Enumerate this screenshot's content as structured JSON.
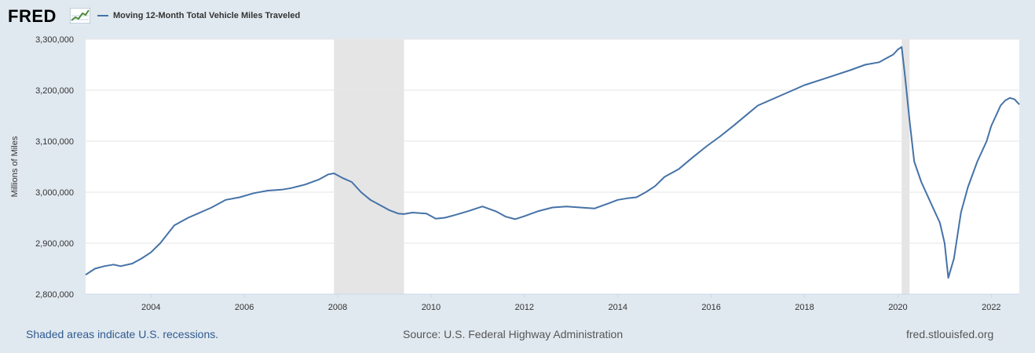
{
  "brand": {
    "logo_text": "FRED",
    "logo_icon": "line-chart-icon"
  },
  "legend": {
    "label": "Moving 12-Month Total Vehicle Miles Traveled"
  },
  "colors": {
    "series": "#4572a7",
    "recession": "#e5e5e5",
    "plot_bg": "#ffffff",
    "page_bg": "#e1e9f0",
    "grid": "#e6e6e6",
    "axis_text": "#333333"
  },
  "footer": {
    "recession_note": "Shaded areas indicate U.S. recessions.",
    "source": "Source: U.S. Federal Highway Administration",
    "site": "fred.stlouisfed.org"
  },
  "chart_data": {
    "type": "line",
    "title": "",
    "xlabel": "",
    "ylabel": "Millions of Miles",
    "xlim": [
      2002.6,
      2022.6
    ],
    "ylim": [
      2800000,
      3300000
    ],
    "grid": true,
    "legend_position": "top-left",
    "x_ticks": [
      "2004",
      "2006",
      "2008",
      "2010",
      "2012",
      "2014",
      "2016",
      "2018",
      "2020",
      "2022"
    ],
    "y_ticks": [
      "2,800,000",
      "2,900,000",
      "3,000,000",
      "3,100,000",
      "3,200,000",
      "3,300,000"
    ],
    "recessions": [
      {
        "start": 2007.92,
        "end": 2009.42
      },
      {
        "start": 2020.08,
        "end": 2020.25
      }
    ],
    "series": [
      {
        "name": "Moving 12-Month Total Vehicle Miles Traveled",
        "x": [
          2002.6,
          2002.8,
          2003.0,
          2003.2,
          2003.35,
          2003.6,
          2003.8,
          2004.0,
          2004.2,
          2004.5,
          2004.8,
          2005.0,
          2005.3,
          2005.6,
          2005.9,
          2006.2,
          2006.5,
          2006.8,
          2007.0,
          2007.3,
          2007.6,
          2007.8,
          2007.92,
          2008.1,
          2008.3,
          2008.5,
          2008.7,
          2008.9,
          2009.1,
          2009.3,
          2009.42,
          2009.6,
          2009.9,
          2010.1,
          2010.3,
          2010.5,
          2010.8,
          2011.1,
          2011.4,
          2011.6,
          2011.8,
          2012.0,
          2012.3,
          2012.6,
          2012.9,
          2013.2,
          2013.5,
          2013.8,
          2014.0,
          2014.2,
          2014.4,
          2014.6,
          2014.8,
          2015.0,
          2015.3,
          2015.6,
          2015.9,
          2016.2,
          2016.5,
          2016.8,
          2017.0,
          2017.5,
          2018.0,
          2018.5,
          2019.0,
          2019.3,
          2019.6,
          2019.8,
          2019.9,
          2020.0,
          2020.08,
          2020.15,
          2020.25,
          2020.35,
          2020.5,
          2020.7,
          2020.9,
          2021.0,
          2021.08,
          2021.2,
          2021.35,
          2021.5,
          2021.7,
          2021.9,
          2022.0,
          2022.1,
          2022.2,
          2022.3,
          2022.4,
          2022.5,
          2022.6
        ],
        "values": [
          2838000,
          2850000,
          2855000,
          2858000,
          2855000,
          2860000,
          2870000,
          2882000,
          2900000,
          2935000,
          2950000,
          2958000,
          2970000,
          2985000,
          2990000,
          2998000,
          3003000,
          3005000,
          3008000,
          3015000,
          3025000,
          3035000,
          3037000,
          3028000,
          3020000,
          3000000,
          2985000,
          2975000,
          2965000,
          2958000,
          2957000,
          2960000,
          2958000,
          2948000,
          2950000,
          2955000,
          2963000,
          2972000,
          2962000,
          2952000,
          2947000,
          2953000,
          2963000,
          2970000,
          2972000,
          2970000,
          2968000,
          2978000,
          2985000,
          2988000,
          2990000,
          3000000,
          3012000,
          3030000,
          3045000,
          3068000,
          3090000,
          3110000,
          3132000,
          3155000,
          3170000,
          3190000,
          3210000,
          3225000,
          3240000,
          3250000,
          3255000,
          3265000,
          3270000,
          3280000,
          3285000,
          3230000,
          3140000,
          3060000,
          3020000,
          2980000,
          2940000,
          2900000,
          2832000,
          2870000,
          2960000,
          3010000,
          3060000,
          3100000,
          3130000,
          3150000,
          3170000,
          3180000,
          3185000,
          3182000,
          3172000
        ]
      }
    ]
  }
}
